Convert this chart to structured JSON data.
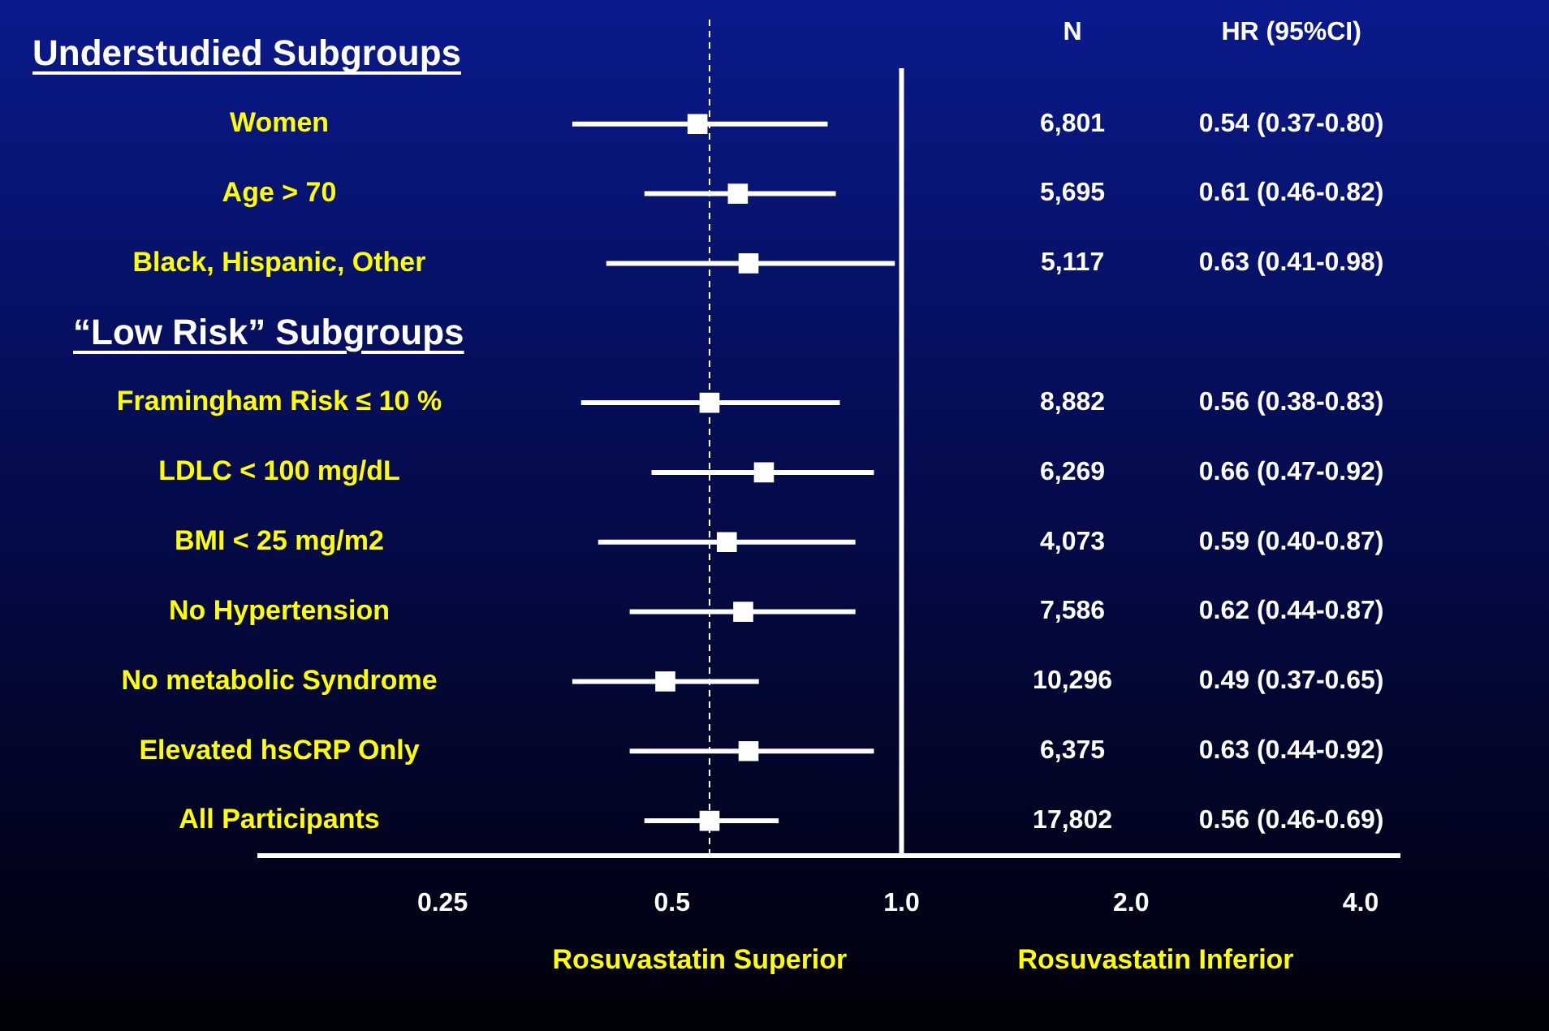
{
  "chart_data": {
    "type": "scatter",
    "orientation": "horizontal",
    "log": "x",
    "categories": [
      "Understudied Subgroups",
      "Women",
      "Age > 70",
      "Black, Hispanic, Other",
      "“Low Risk” Subgroups",
      "Framingham Risk ≤ 10 %",
      "LDLC < 100 mg/dL",
      "BMI < 25 mg/m2",
      "No Hypertension",
      "No metabolic Syndrome",
      "Elevated hsCRP Only",
      "All Participants"
    ],
    "values": [
      null,
      0.54,
      0.61,
      0.63,
      null,
      0.56,
      0.66,
      0.59,
      0.62,
      0.49,
      0.63,
      0.56
    ],
    "errors": [
      null,
      [
        0.37,
        0.8
      ],
      [
        0.46,
        0.82
      ],
      [
        0.41,
        0.98
      ],
      null,
      [
        0.38,
        0.83
      ],
      [
        0.47,
        0.92
      ],
      [
        0.4,
        0.87
      ],
      [
        0.44,
        0.87
      ],
      [
        0.37,
        0.65
      ],
      [
        0.44,
        0.92
      ],
      [
        0.46,
        0.69
      ]
    ],
    "color": "#ffffff",
    "marker": "square",
    "xlim": [
      0.144,
      4.5
    ],
    "xticks": [
      0.25,
      0.5,
      {
        "value": 1,
        "label": "1.0"
      },
      {
        "value": 2,
        "label": "2.0"
      },
      {
        "value": 4,
        "label": "4.0"
      }
    ],
    "ref_lines": [
      {
        "axis": "x",
        "value": 1,
        "color": "#ffffff",
        "line_style": "solid"
      },
      {
        "axis": "x",
        "value": 0.56,
        "color": "#ffffff",
        "line_style": "dashed"
      }
    ],
    "annotations": [
      "N",
      "6,801",
      "5,695",
      "5,117",
      "8,882",
      "6,269",
      "4,073",
      "7,586",
      "10,296",
      "6,375",
      "17,802",
      "HR (95%CI)",
      "0.54 (0.37-0.80)",
      "0.61 (0.46-0.82)",
      "0.63 (0.41-0.98)",
      "0.56 (0.38-0.83)",
      "0.66 (0.47-0.92)",
      "0.59 (0.40-0.87)",
      "0.62 (0.44-0.87)",
      "0.49 (0.37-0.65)",
      "0.63 (0.44-0.92)",
      "0.56 (0.46-0.69)",
      "Rosuvastatin Superior",
      "Rosuvastatin Inferior"
    ],
    "grid": false,
    "legend": false
  }
}
